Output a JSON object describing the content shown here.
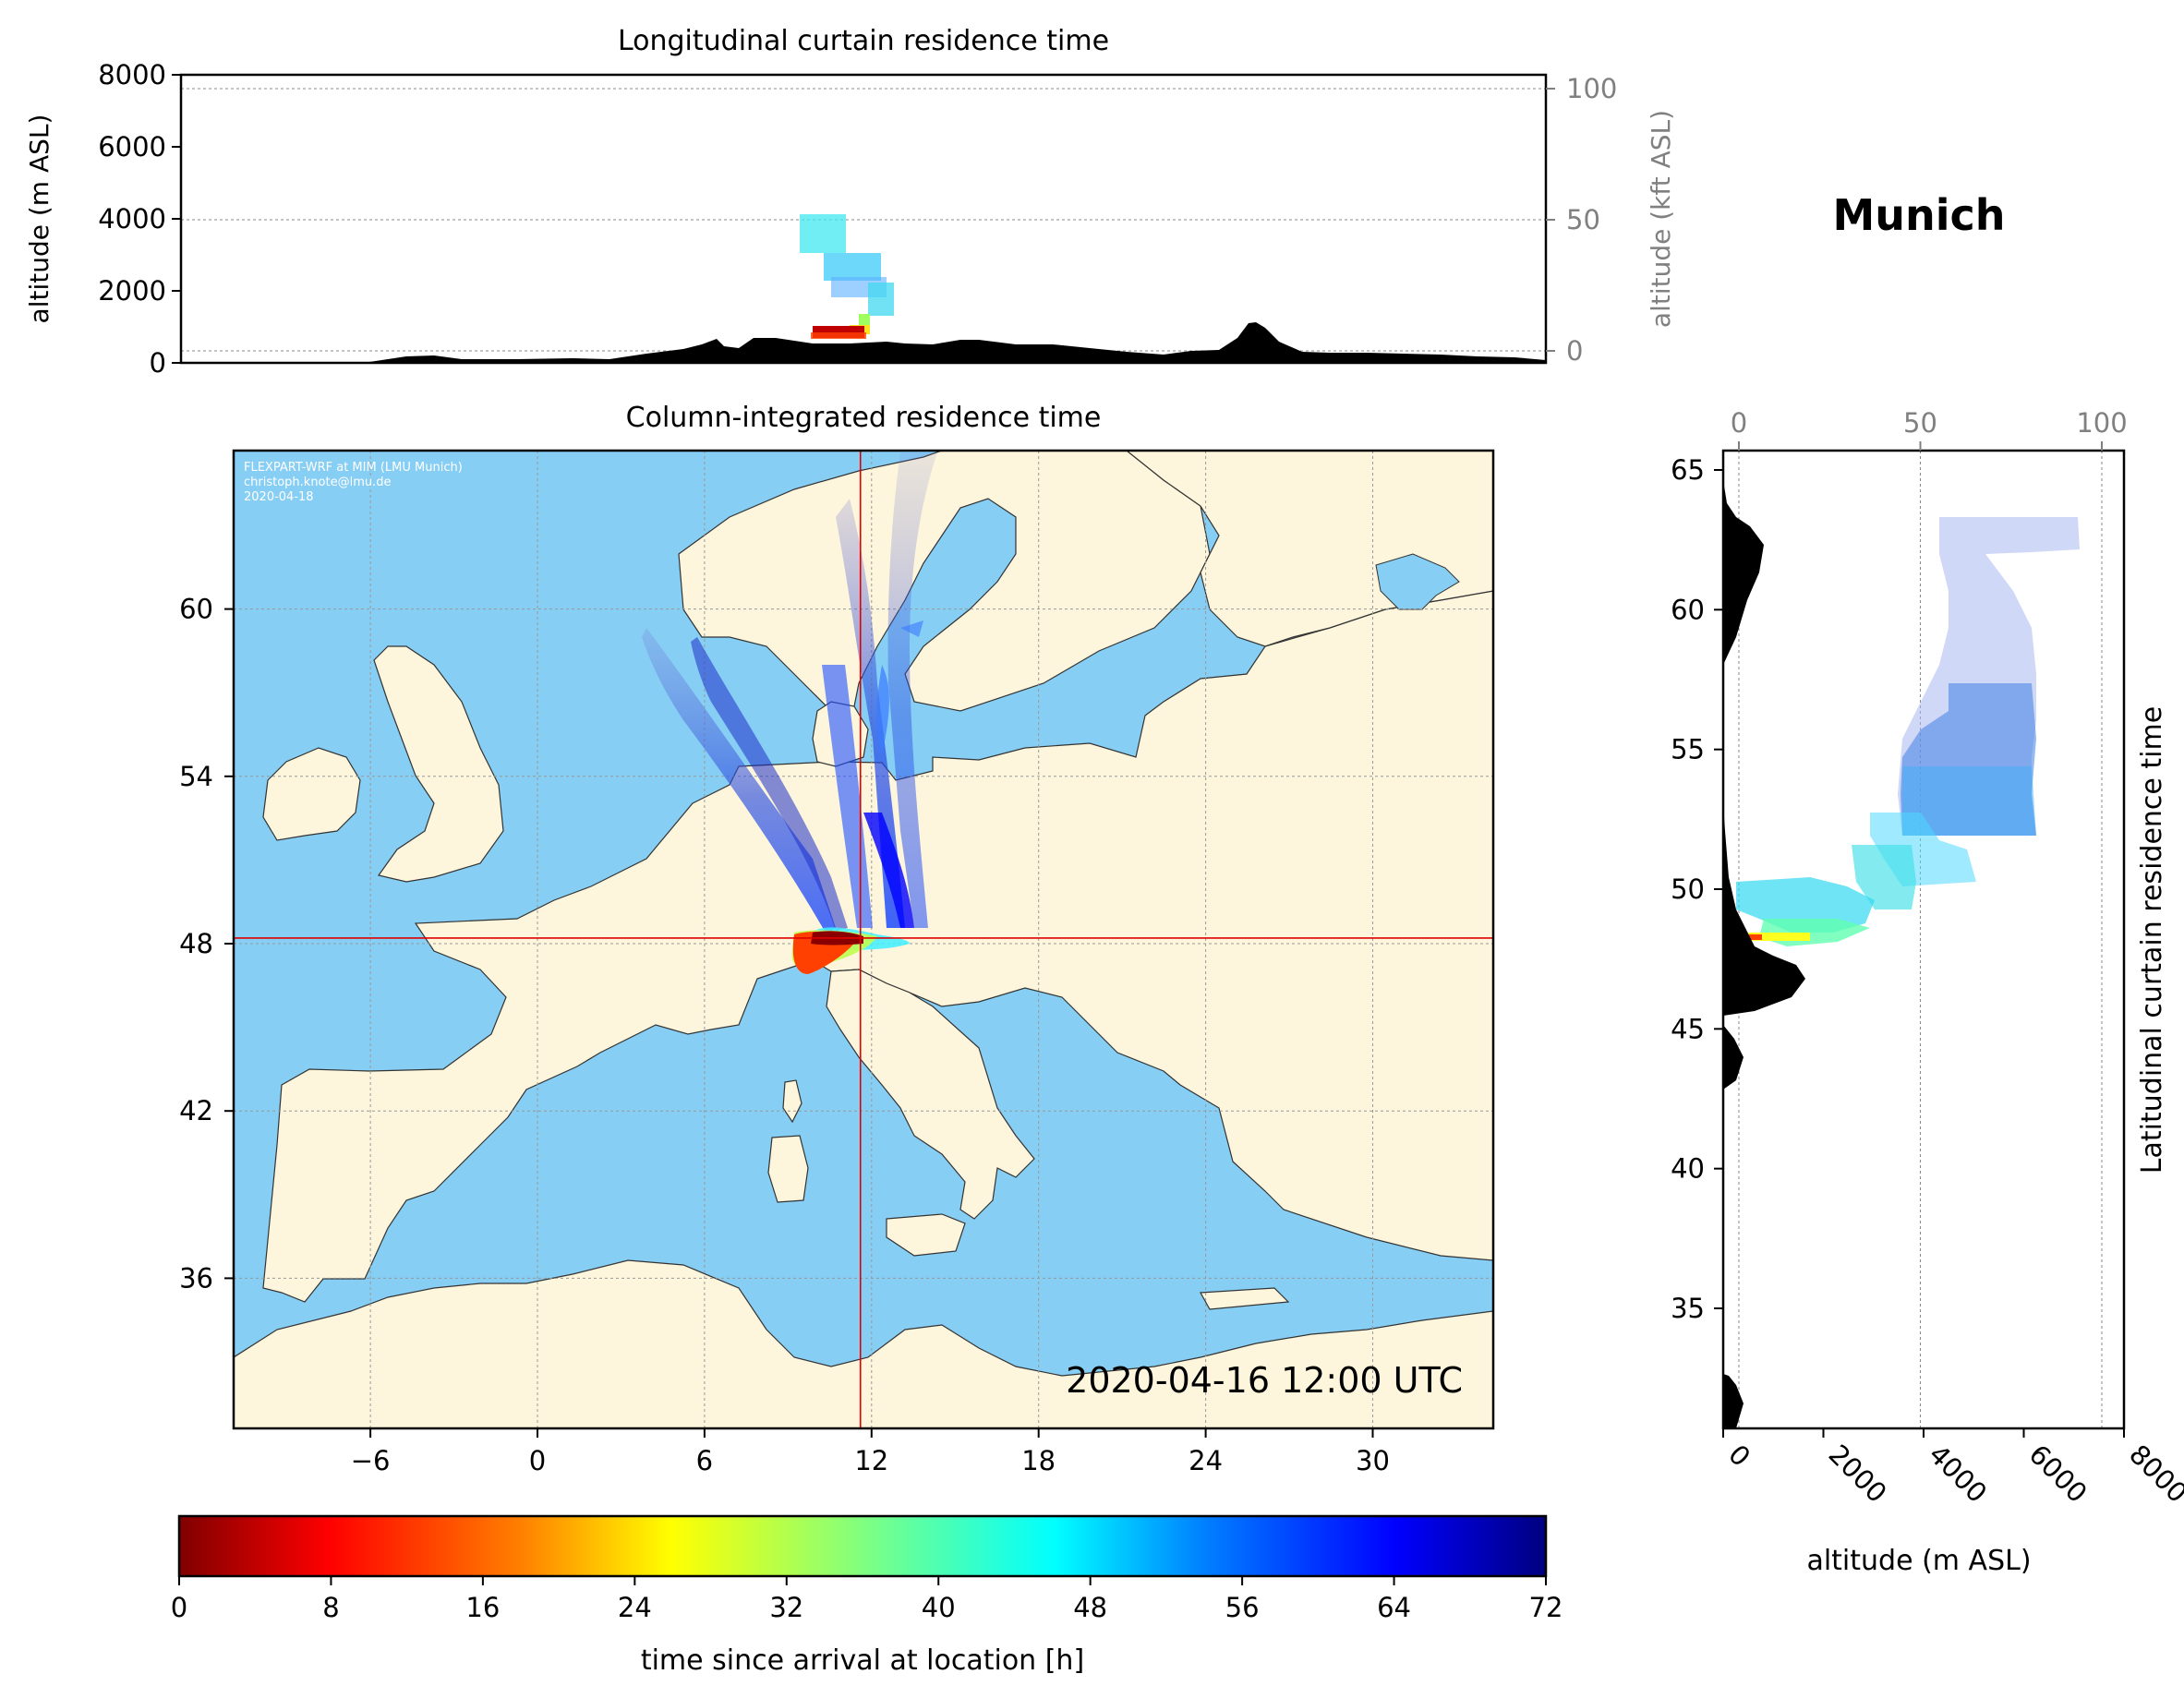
{
  "location_title": "Munich",
  "colors": {
    "ocean": "#87CEF5",
    "land": "#FDF6DC",
    "terrain": "#000000",
    "crosshair": "#E00000",
    "secondary_axis": "#808080"
  },
  "chart_data": [
    {
      "type": "heatmap",
      "title": "Longitudinal curtain residence time",
      "ylabel": "altitude (m ASL)",
      "ylabel_right": "altitude (kft ASL)",
      "ylim": [
        0,
        8000
      ],
      "yticks": [
        0,
        2000,
        4000,
        6000,
        8000
      ],
      "yticks_right": [
        0,
        50,
        100
      ],
      "grid": true
    },
    {
      "type": "heatmap",
      "title": "Column-integrated residence time",
      "xticks": [
        -6,
        0,
        6,
        12,
        18,
        24,
        30
      ],
      "yticks": [
        36,
        42,
        48,
        54,
        60
      ],
      "annotation_credit": [
        "FLEXPART-WRF at MIM (LMU Munich)",
        "christoph.knote@lmu.de",
        "2020-04-18"
      ],
      "timestamp": "2020-04-16 12:00 UTC",
      "location": {
        "lon": 11.6,
        "lat": 48.2
      },
      "grid": true
    },
    {
      "type": "heatmap",
      "title": "Latitudinal curtain residence time",
      "xlabel": "altitude (m ASL)",
      "xticks": [
        0,
        2000,
        4000,
        6000,
        8000
      ],
      "xticks_top": [
        0,
        50,
        100
      ],
      "yticks": [
        35,
        40,
        45,
        50,
        55,
        60,
        65
      ],
      "grid": true
    },
    {
      "type": "colorbar",
      "label": "time since arrival at location [h]",
      "range": [
        0,
        72
      ],
      "ticks": [
        0,
        8,
        16,
        24,
        32,
        40,
        48,
        56,
        64,
        72
      ],
      "colormap": "jet_r"
    }
  ]
}
